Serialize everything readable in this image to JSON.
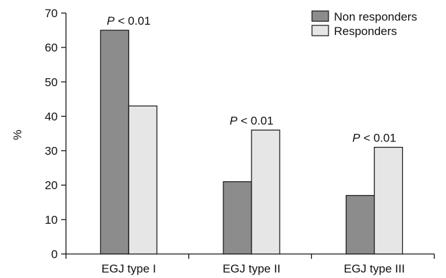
{
  "chart_data": {
    "type": "bar",
    "title": "",
    "xlabel": "",
    "ylabel": "%",
    "ylim": [
      0,
      70
    ],
    "yticks": [
      0,
      10,
      20,
      30,
      40,
      50,
      60,
      70
    ],
    "grid": false,
    "legend_position": "top-right",
    "categories": [
      "EGJ type I",
      "EGJ type II",
      "EGJ type III"
    ],
    "series": [
      {
        "name": "Non responders",
        "values": [
          65,
          21,
          17
        ],
        "color": "#8c8c8c"
      },
      {
        "name": "Responders",
        "values": [
          43,
          36,
          31
        ],
        "color": "#e6e6e6"
      }
    ],
    "annotations": [
      {
        "category": "EGJ type I",
        "p_label": "P",
        "relation": "< 0.01"
      },
      {
        "category": "EGJ type II",
        "p_label": "P",
        "relation": "< 0.01"
      },
      {
        "category": "EGJ type III",
        "p_label": "P",
        "relation": "< 0.01"
      }
    ]
  }
}
